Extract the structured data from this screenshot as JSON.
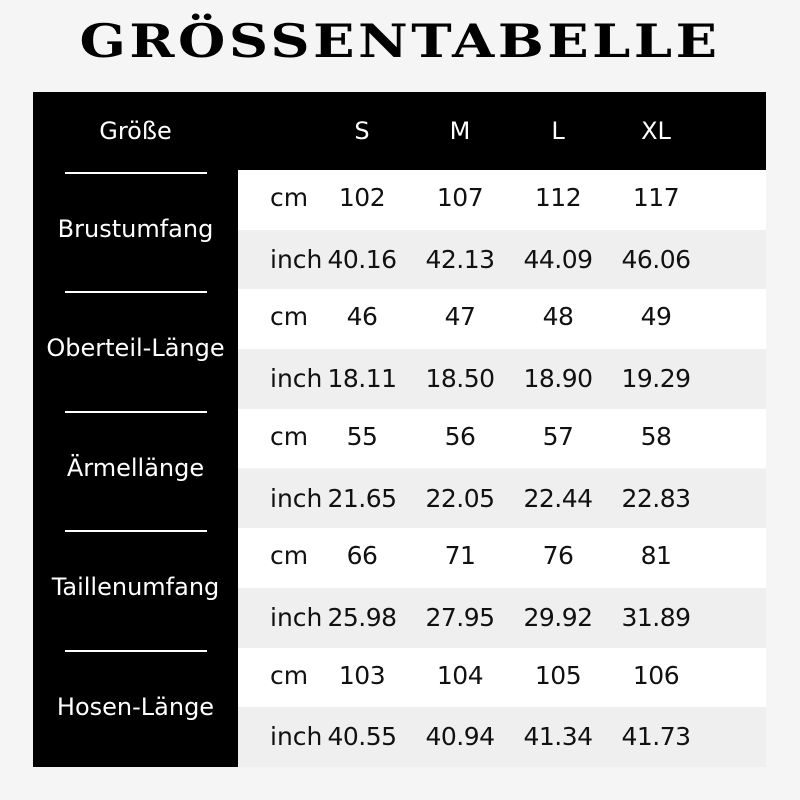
{
  "title": "GRÖSSENTABELLE",
  "header": {
    "label": "Größe",
    "sizes": [
      "S",
      "M",
      "L",
      "XL"
    ]
  },
  "groups": [
    {
      "label": "Brustumfang",
      "cm": [
        "102",
        "107",
        "112",
        "117"
      ],
      "inch": [
        "40.16",
        "42.13",
        "44.09",
        "46.06"
      ]
    },
    {
      "label": "Oberteil-Länge",
      "cm": [
        "46",
        "47",
        "48",
        "49"
      ],
      "inch": [
        "18.11",
        "18.50",
        "18.90",
        "19.29"
      ]
    },
    {
      "label": "Ärmellänge",
      "cm": [
        "55",
        "56",
        "57",
        "58"
      ],
      "inch": [
        "21.65",
        "22.05",
        "22.44",
        "22.83"
      ]
    },
    {
      "label": "Taillenumfang",
      "cm": [
        "66",
        "71",
        "76",
        "81"
      ],
      "inch": [
        "25.98",
        "27.95",
        "29.92",
        "31.89"
      ]
    },
    {
      "label": "Hosen-Länge",
      "cm": [
        "103",
        "104",
        "105",
        "106"
      ],
      "inch": [
        "40.55",
        "40.94",
        "41.34",
        "41.73"
      ]
    }
  ],
  "units": {
    "cm": "cm",
    "inch": "inch"
  },
  "colors": {
    "header_bg": "#000000",
    "cm_row_bg": "#ffffff",
    "inch_row_bg": "#efefef",
    "page_bg": "#f5f5f5"
  }
}
